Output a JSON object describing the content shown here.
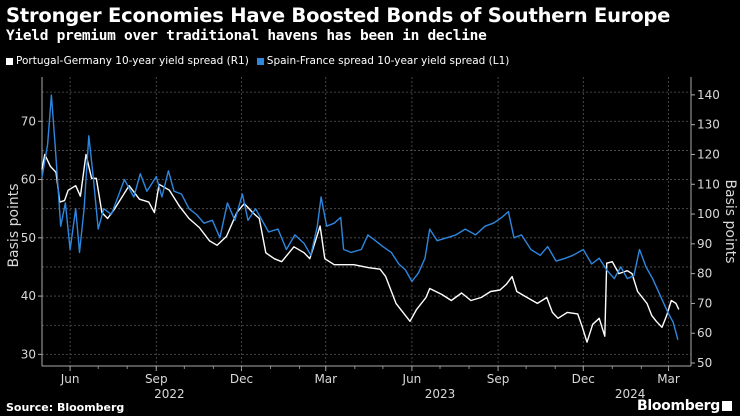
{
  "chart_data": {
    "type": "line",
    "title": "Stronger Economies Have Boosted Bonds of Southern Europe",
    "subtitle": "Yield premium over traditional havens has been in decline",
    "source": "Source: Bloomberg",
    "logo": "Bloomberg",
    "ylabel_left": "Basis points",
    "ylabel_right": "Basis points",
    "ylim_left": [
      28,
      77.6
    ],
    "ylim_right": [
      49,
      146
    ],
    "yticks_left": [
      30,
      40,
      50,
      60,
      70
    ],
    "yticks_right": [
      50,
      60,
      70,
      80,
      90,
      100,
      110,
      120,
      130,
      140
    ],
    "xlim": [
      "2022-05-02",
      "2024-03-25"
    ],
    "xticks": [
      {
        "date": "2022-06-01",
        "label": "Jun"
      },
      {
        "date": "2022-09-01",
        "label": "Sep"
      },
      {
        "date": "2022-12-01",
        "label": "Dec"
      },
      {
        "date": "2023-03-01",
        "label": "Mar"
      },
      {
        "date": "2023-06-01",
        "label": "Jun"
      },
      {
        "date": "2023-09-01",
        "label": "Sep"
      },
      {
        "date": "2023-12-01",
        "label": "Dec"
      },
      {
        "date": "2024-03-01",
        "label": "Mar"
      }
    ],
    "year_labels": [
      {
        "date": "2022-09-15",
        "label": "2022"
      },
      {
        "date": "2023-07-01",
        "label": "2023"
      },
      {
        "date": "2024-01-20",
        "label": "2024"
      }
    ],
    "grid": true,
    "legend_position": "top-left",
    "series": [
      {
        "name": "Portugal-Germany 10-year yield spread (R1)",
        "axis": "right",
        "color": "#ffffff",
        "points": [
          [
            "2022-05-02",
            115
          ],
          [
            "2022-05-05",
            120
          ],
          [
            "2022-05-11",
            116
          ],
          [
            "2022-05-17",
            114
          ],
          [
            "2022-05-21",
            104
          ],
          [
            "2022-05-26",
            104.5
          ],
          [
            "2022-05-30",
            108
          ],
          [
            "2022-06-07",
            109.5
          ],
          [
            "2022-06-12",
            106
          ],
          [
            "2022-06-18",
            120
          ],
          [
            "2022-06-24",
            112
          ],
          [
            "2022-06-29",
            112
          ],
          [
            "2022-07-05",
            100.5
          ],
          [
            "2022-07-11",
            98.5
          ],
          [
            "2022-07-18",
            101.5
          ],
          [
            "2022-07-27",
            106
          ],
          [
            "2022-08-03",
            109.5
          ],
          [
            "2022-08-14",
            105
          ],
          [
            "2022-08-24",
            104
          ],
          [
            "2022-08-30",
            100.5
          ],
          [
            "2022-09-04",
            110
          ],
          [
            "2022-09-15",
            108
          ],
          [
            "2022-09-26",
            102.5
          ],
          [
            "2022-10-06",
            98.5
          ],
          [
            "2022-10-17",
            95.5
          ],
          [
            "2022-10-28",
            91
          ],
          [
            "2022-11-05",
            89.5
          ],
          [
            "2022-11-15",
            92.5
          ],
          [
            "2022-11-26",
            100.5
          ],
          [
            "2022-12-04",
            103.5
          ],
          [
            "2022-12-13",
            100.5
          ],
          [
            "2022-12-20",
            98.5
          ],
          [
            "2022-12-27",
            87
          ],
          [
            "2023-01-05",
            85
          ],
          [
            "2023-01-13",
            84
          ],
          [
            "2023-01-26",
            89
          ],
          [
            "2023-02-06",
            87
          ],
          [
            "2023-02-12",
            85
          ],
          [
            "2023-02-19",
            92
          ],
          [
            "2023-02-23",
            96
          ],
          [
            "2023-02-28",
            85
          ],
          [
            "2023-03-10",
            83
          ],
          [
            "2023-03-20",
            83
          ],
          [
            "2023-03-31",
            83
          ],
          [
            "2023-04-16",
            82
          ],
          [
            "2023-04-28",
            81.5
          ],
          [
            "2023-05-04",
            79
          ],
          [
            "2023-05-15",
            70
          ],
          [
            "2023-05-20",
            68
          ],
          [
            "2023-05-30",
            64
          ],
          [
            "2023-06-06",
            68
          ],
          [
            "2023-06-16",
            72
          ],
          [
            "2023-06-20",
            75
          ],
          [
            "2023-07-03",
            73
          ],
          [
            "2023-07-13",
            71
          ],
          [
            "2023-07-24",
            73.5
          ],
          [
            "2023-08-03",
            71
          ],
          [
            "2023-08-14",
            72
          ],
          [
            "2023-08-24",
            74
          ],
          [
            "2023-09-03",
            74.5
          ],
          [
            "2023-09-10",
            76.5
          ],
          [
            "2023-09-16",
            79
          ],
          [
            "2023-09-21",
            74
          ],
          [
            "2023-10-02",
            72
          ],
          [
            "2023-10-13",
            70
          ],
          [
            "2023-10-23",
            72
          ],
          [
            "2023-10-29",
            67
          ],
          [
            "2023-11-04",
            65
          ],
          [
            "2023-11-14",
            67
          ],
          [
            "2023-11-25",
            66.5
          ],
          [
            "2023-11-30",
            62
          ],
          [
            "2023-12-05",
            57
          ],
          [
            "2023-12-11",
            63
          ],
          [
            "2023-12-18",
            65
          ],
          [
            "2023-12-24",
            59
          ],
          [
            "2023-12-26",
            83.5
          ],
          [
            "2024-01-01",
            84
          ],
          [
            "2024-01-08",
            80
          ],
          [
            "2024-01-17",
            81
          ],
          [
            "2024-01-22",
            80
          ],
          [
            "2024-01-28",
            74
          ],
          [
            "2024-02-07",
            70
          ],
          [
            "2024-02-12",
            66
          ],
          [
            "2024-02-17",
            64
          ],
          [
            "2024-02-23",
            62
          ],
          [
            "2024-02-28",
            66
          ],
          [
            "2024-03-04",
            71
          ],
          [
            "2024-03-09",
            70
          ],
          [
            "2024-03-12",
            68
          ]
        ]
      },
      {
        "name": "Spain-France spread 10-year yield spread (L1)",
        "axis": "left",
        "color": "#2e86de",
        "points": [
          [
            "2022-05-02",
            60.4
          ],
          [
            "2022-05-08",
            66
          ],
          [
            "2022-05-12",
            74.5
          ],
          [
            "2022-05-16",
            66
          ],
          [
            "2022-05-22",
            52
          ],
          [
            "2022-05-27",
            56
          ],
          [
            "2022-06-01",
            48
          ],
          [
            "2022-06-07",
            55
          ],
          [
            "2022-06-11",
            47.5
          ],
          [
            "2022-06-16",
            55
          ],
          [
            "2022-06-21",
            67.5
          ],
          [
            "2022-06-26",
            60
          ],
          [
            "2022-07-01",
            51.5
          ],
          [
            "2022-07-07",
            55
          ],
          [
            "2022-07-15",
            54
          ],
          [
            "2022-07-22",
            57
          ],
          [
            "2022-07-29",
            60
          ],
          [
            "2022-08-08",
            57
          ],
          [
            "2022-08-15",
            61
          ],
          [
            "2022-08-22",
            58
          ],
          [
            "2022-09-01",
            60.5
          ],
          [
            "2022-09-07",
            57
          ],
          [
            "2022-09-14",
            61.5
          ],
          [
            "2022-09-20",
            58
          ],
          [
            "2022-09-28",
            57.5
          ],
          [
            "2022-10-06",
            55
          ],
          [
            "2022-10-14",
            54
          ],
          [
            "2022-10-22",
            52.5
          ],
          [
            "2022-10-31",
            53
          ],
          [
            "2022-11-08",
            50
          ],
          [
            "2022-11-16",
            56
          ],
          [
            "2022-11-24",
            53
          ],
          [
            "2022-12-02",
            57.5
          ],
          [
            "2022-12-08",
            53
          ],
          [
            "2022-12-16",
            55
          ],
          [
            "2022-12-23",
            53
          ],
          [
            "2022-12-30",
            51
          ],
          [
            "2023-01-09",
            51.5
          ],
          [
            "2023-01-18",
            48
          ],
          [
            "2023-01-27",
            50.5
          ],
          [
            "2023-02-06",
            49
          ],
          [
            "2023-02-13",
            47
          ],
          [
            "2023-02-20",
            52
          ],
          [
            "2023-02-24",
            57
          ],
          [
            "2023-03-02",
            52
          ],
          [
            "2023-03-10",
            52.5
          ],
          [
            "2023-03-17",
            53.5
          ],
          [
            "2023-03-20",
            48
          ],
          [
            "2023-03-28",
            47.5
          ],
          [
            "2023-04-08",
            48
          ],
          [
            "2023-04-15",
            50.5
          ],
          [
            "2023-04-23",
            49.5
          ],
          [
            "2023-05-01",
            48.5
          ],
          [
            "2023-05-10",
            47.5
          ],
          [
            "2023-05-18",
            45.5
          ],
          [
            "2023-05-25",
            44.5
          ],
          [
            "2023-06-01",
            42.5
          ],
          [
            "2023-06-08",
            44
          ],
          [
            "2023-06-15",
            46.5
          ],
          [
            "2023-06-20",
            51.5
          ],
          [
            "2023-06-28",
            49.5
          ],
          [
            "2023-07-08",
            50
          ],
          [
            "2023-07-18",
            50.5
          ],
          [
            "2023-07-28",
            51.5
          ],
          [
            "2023-08-08",
            50.5
          ],
          [
            "2023-08-18",
            52
          ],
          [
            "2023-08-27",
            52.5
          ],
          [
            "2023-09-05",
            53.5
          ],
          [
            "2023-09-12",
            54.5
          ],
          [
            "2023-09-18",
            50
          ],
          [
            "2023-09-26",
            50.5
          ],
          [
            "2023-10-06",
            48
          ],
          [
            "2023-10-16",
            47
          ],
          [
            "2023-10-24",
            48.5
          ],
          [
            "2023-11-02",
            46
          ],
          [
            "2023-11-12",
            46.5
          ],
          [
            "2023-11-20",
            47
          ],
          [
            "2023-12-01",
            48
          ],
          [
            "2023-12-10",
            45.5
          ],
          [
            "2023-12-18",
            46.5
          ],
          [
            "2023-12-26",
            44.5
          ],
          [
            "2024-01-03",
            43
          ],
          [
            "2024-01-10",
            45
          ],
          [
            "2024-01-17",
            43
          ],
          [
            "2024-01-24",
            43.5
          ],
          [
            "2024-01-30",
            48
          ],
          [
            "2024-02-06",
            45
          ],
          [
            "2024-02-13",
            43
          ],
          [
            "2024-02-20",
            40.5
          ],
          [
            "2024-02-27",
            38
          ],
          [
            "2024-03-01",
            37
          ],
          [
            "2024-03-06",
            35.5
          ],
          [
            "2024-03-11",
            32.5
          ]
        ]
      }
    ]
  }
}
